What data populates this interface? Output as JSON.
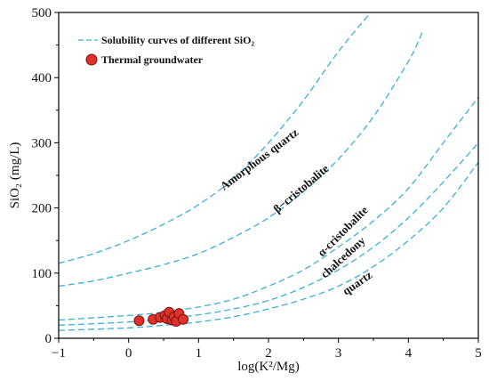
{
  "chart_data": {
    "type": "scatter",
    "xlabel": "log(K²/Mg)",
    "ylabel": "SiO₂ (mg/L)",
    "xlim": [
      -1,
      5
    ],
    "ylim": [
      0,
      500
    ],
    "x_ticks": [
      "−1",
      "0",
      "1",
      "2",
      "3",
      "4",
      "5"
    ],
    "y_ticks": [
      "0",
      "100",
      "200",
      "300",
      "400",
      "500"
    ],
    "grid": false,
    "legend_position": "top-left",
    "legend": [
      {
        "label": "Solubility curves of different SiO₂",
        "style": "dashed-line",
        "color": "#3ab0d8"
      },
      {
        "label": "Thermal groundwater",
        "style": "marker",
        "color": "#e0302a"
      }
    ],
    "curve_color": "#3ab0d8",
    "marker_color": "#e0302a",
    "curves": [
      {
        "name": "Amorphous quartz",
        "x": [
          -1,
          -0.5,
          0,
          0.5,
          1,
          1.5,
          2,
          2.5,
          3,
          3.5
        ],
        "y": [
          115,
          130,
          150,
          175,
          205,
          245,
          300,
          365,
          440,
          505
        ]
      },
      {
        "name": "β−cristobalite",
        "x": [
          -1,
          -0.5,
          0,
          0.5,
          1,
          1.5,
          2,
          2.5,
          3,
          3.5,
          4,
          4.2
        ],
        "y": [
          80,
          88,
          100,
          113,
          130,
          155,
          185,
          225,
          275,
          340,
          425,
          470
        ]
      },
      {
        "name": "α-cristobalite",
        "x": [
          -1,
          0,
          0.5,
          1,
          1.5,
          2,
          2.5,
          3,
          3.5,
          4,
          4.5,
          5
        ],
        "y": [
          28,
          35,
          40,
          48,
          60,
          80,
          105,
          140,
          180,
          230,
          300,
          370
        ]
      },
      {
        "name": "chalcedony",
        "x": [
          -1,
          0,
          0.5,
          1,
          1.5,
          2,
          2.5,
          3,
          3.5,
          4,
          4.5,
          5
        ],
        "y": [
          20,
          25,
          30,
          36,
          45,
          58,
          78,
          105,
          140,
          185,
          240,
          300
        ]
      },
      {
        "name": "quartz",
        "x": [
          -1,
          0,
          0.5,
          1,
          1.5,
          2,
          2.5,
          3,
          3.5,
          4,
          4.5,
          5
        ],
        "y": [
          12,
          16,
          20,
          25,
          33,
          45,
          60,
          80,
          110,
          150,
          200,
          270
        ]
      }
    ],
    "points": [
      {
        "x": 0.15,
        "y": 27
      },
      {
        "x": 0.35,
        "y": 29
      },
      {
        "x": 0.45,
        "y": 32
      },
      {
        "x": 0.52,
        "y": 35
      },
      {
        "x": 0.55,
        "y": 30
      },
      {
        "x": 0.58,
        "y": 40
      },
      {
        "x": 0.62,
        "y": 28
      },
      {
        "x": 0.65,
        "y": 33
      },
      {
        "x": 0.68,
        "y": 26
      },
      {
        "x": 0.72,
        "y": 38
      },
      {
        "x": 0.78,
        "y": 29
      }
    ],
    "curve_labels": [
      {
        "text": "Amorphous quartz",
        "x": 1.9,
        "y": 270,
        "angle": -37
      },
      {
        "text": "β−cristobalite",
        "x": 2.5,
        "y": 225,
        "angle": -40
      },
      {
        "text": "α-cristobalite",
        "x": 3.1,
        "y": 160,
        "angle": -45
      },
      {
        "text": "chalcedony",
        "x": 3.1,
        "y": 120,
        "angle": -42
      },
      {
        "text": "quartz",
        "x": 3.3,
        "y": 80,
        "angle": -35
      }
    ]
  }
}
